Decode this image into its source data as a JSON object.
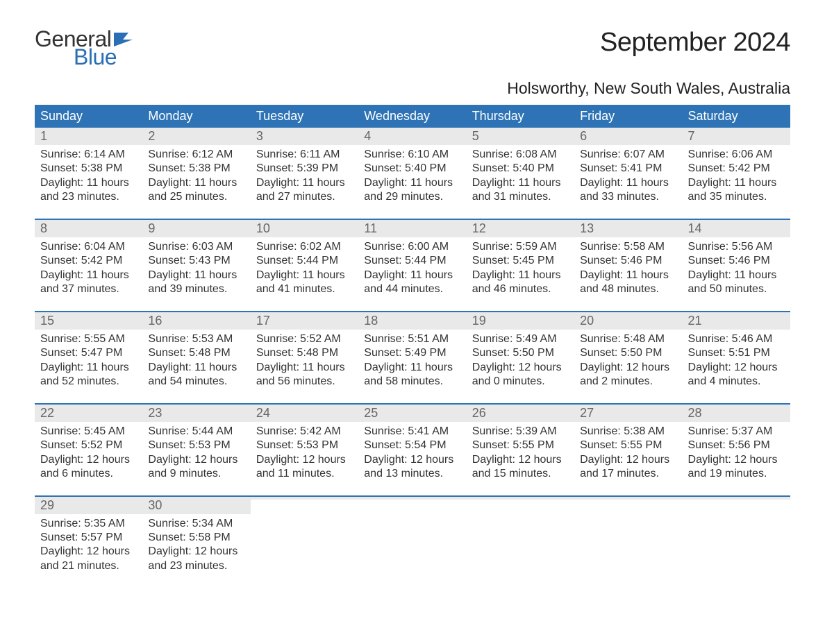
{
  "logo": {
    "text_general": "General",
    "text_blue": "Blue",
    "flag_color": "#2a6fb5"
  },
  "title": "September 2024",
  "location": "Holsworthy, New South Wales, Australia",
  "colors": {
    "header_bg": "#2d73b6",
    "header_text": "#ffffff",
    "daynum_bg": "#e9e9e9",
    "daynum_text": "#666666",
    "body_text": "#333333",
    "week_border": "#2d73b6"
  },
  "weekdays": [
    "Sunday",
    "Monday",
    "Tuesday",
    "Wednesday",
    "Thursday",
    "Friday",
    "Saturday"
  ],
  "labels": {
    "sunrise": "Sunrise:",
    "sunset": "Sunset:",
    "daylight": "Daylight:"
  },
  "weeks": [
    [
      {
        "n": "1",
        "sunrise": "6:14 AM",
        "sunset": "5:38 PM",
        "daylight": "11 hours and 23 minutes."
      },
      {
        "n": "2",
        "sunrise": "6:12 AM",
        "sunset": "5:38 PM",
        "daylight": "11 hours and 25 minutes."
      },
      {
        "n": "3",
        "sunrise": "6:11 AM",
        "sunset": "5:39 PM",
        "daylight": "11 hours and 27 minutes."
      },
      {
        "n": "4",
        "sunrise": "6:10 AM",
        "sunset": "5:40 PM",
        "daylight": "11 hours and 29 minutes."
      },
      {
        "n": "5",
        "sunrise": "6:08 AM",
        "sunset": "5:40 PM",
        "daylight": "11 hours and 31 minutes."
      },
      {
        "n": "6",
        "sunrise": "6:07 AM",
        "sunset": "5:41 PM",
        "daylight": "11 hours and 33 minutes."
      },
      {
        "n": "7",
        "sunrise": "6:06 AM",
        "sunset": "5:42 PM",
        "daylight": "11 hours and 35 minutes."
      }
    ],
    [
      {
        "n": "8",
        "sunrise": "6:04 AM",
        "sunset": "5:42 PM",
        "daylight": "11 hours and 37 minutes."
      },
      {
        "n": "9",
        "sunrise": "6:03 AM",
        "sunset": "5:43 PM",
        "daylight": "11 hours and 39 minutes."
      },
      {
        "n": "10",
        "sunrise": "6:02 AM",
        "sunset": "5:44 PM",
        "daylight": "11 hours and 41 minutes."
      },
      {
        "n": "11",
        "sunrise": "6:00 AM",
        "sunset": "5:44 PM",
        "daylight": "11 hours and 44 minutes."
      },
      {
        "n": "12",
        "sunrise": "5:59 AM",
        "sunset": "5:45 PM",
        "daylight": "11 hours and 46 minutes."
      },
      {
        "n": "13",
        "sunrise": "5:58 AM",
        "sunset": "5:46 PM",
        "daylight": "11 hours and 48 minutes."
      },
      {
        "n": "14",
        "sunrise": "5:56 AM",
        "sunset": "5:46 PM",
        "daylight": "11 hours and 50 minutes."
      }
    ],
    [
      {
        "n": "15",
        "sunrise": "5:55 AM",
        "sunset": "5:47 PM",
        "daylight": "11 hours and 52 minutes."
      },
      {
        "n": "16",
        "sunrise": "5:53 AM",
        "sunset": "5:48 PM",
        "daylight": "11 hours and 54 minutes."
      },
      {
        "n": "17",
        "sunrise": "5:52 AM",
        "sunset": "5:48 PM",
        "daylight": "11 hours and 56 minutes."
      },
      {
        "n": "18",
        "sunrise": "5:51 AM",
        "sunset": "5:49 PM",
        "daylight": "11 hours and 58 minutes."
      },
      {
        "n": "19",
        "sunrise": "5:49 AM",
        "sunset": "5:50 PM",
        "daylight": "12 hours and 0 minutes."
      },
      {
        "n": "20",
        "sunrise": "5:48 AM",
        "sunset": "5:50 PM",
        "daylight": "12 hours and 2 minutes."
      },
      {
        "n": "21",
        "sunrise": "5:46 AM",
        "sunset": "5:51 PM",
        "daylight": "12 hours and 4 minutes."
      }
    ],
    [
      {
        "n": "22",
        "sunrise": "5:45 AM",
        "sunset": "5:52 PM",
        "daylight": "12 hours and 6 minutes."
      },
      {
        "n": "23",
        "sunrise": "5:44 AM",
        "sunset": "5:53 PM",
        "daylight": "12 hours and 9 minutes."
      },
      {
        "n": "24",
        "sunrise": "5:42 AM",
        "sunset": "5:53 PM",
        "daylight": "12 hours and 11 minutes."
      },
      {
        "n": "25",
        "sunrise": "5:41 AM",
        "sunset": "5:54 PM",
        "daylight": "12 hours and 13 minutes."
      },
      {
        "n": "26",
        "sunrise": "5:39 AM",
        "sunset": "5:55 PM",
        "daylight": "12 hours and 15 minutes."
      },
      {
        "n": "27",
        "sunrise": "5:38 AM",
        "sunset": "5:55 PM",
        "daylight": "12 hours and 17 minutes."
      },
      {
        "n": "28",
        "sunrise": "5:37 AM",
        "sunset": "5:56 PM",
        "daylight": "12 hours and 19 minutes."
      }
    ],
    [
      {
        "n": "29",
        "sunrise": "5:35 AM",
        "sunset": "5:57 PM",
        "daylight": "12 hours and 21 minutes."
      },
      {
        "n": "30",
        "sunrise": "5:34 AM",
        "sunset": "5:58 PM",
        "daylight": "12 hours and 23 minutes."
      },
      {
        "empty": true
      },
      {
        "empty": true
      },
      {
        "empty": true
      },
      {
        "empty": true
      },
      {
        "empty": true
      }
    ]
  ]
}
